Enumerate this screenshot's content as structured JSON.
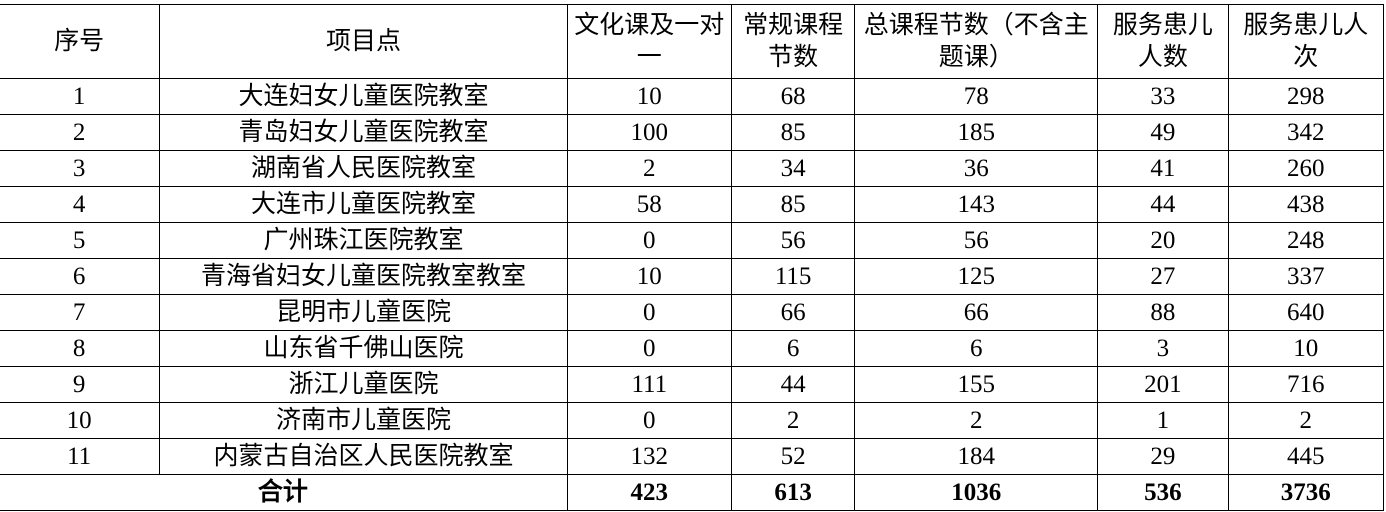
{
  "table": {
    "headers": [
      "序号",
      "项目点",
      "文化课及一对一",
      "常规课程节数",
      "总课程节数（不含主题课）",
      "服务患儿人数",
      "服务患儿人次"
    ],
    "rows": [
      [
        "1",
        "大连妇女儿童医院教室",
        "10",
        "68",
        "78",
        "33",
        "298"
      ],
      [
        "2",
        "青岛妇女儿童医院教室",
        "100",
        "85",
        "185",
        "49",
        "342"
      ],
      [
        "3",
        "湖南省人民医院教室",
        "2",
        "34",
        "36",
        "41",
        "260"
      ],
      [
        "4",
        "大连市儿童医院教室",
        "58",
        "85",
        "143",
        "44",
        "438"
      ],
      [
        "5",
        "广州珠江医院教室",
        "0",
        "56",
        "56",
        "20",
        "248"
      ],
      [
        "6",
        "青海省妇女儿童医院教室教室",
        "10",
        "115",
        "125",
        "27",
        "337"
      ],
      [
        "7",
        "昆明市儿童医院",
        "0",
        "66",
        "66",
        "88",
        "640"
      ],
      [
        "8",
        "山东省千佛山医院",
        "0",
        "6",
        "6",
        "3",
        "10"
      ],
      [
        "9",
        "浙江儿童医院",
        "111",
        "44",
        "155",
        "201",
        "716"
      ],
      [
        "10",
        "济南市儿童医院",
        "0",
        "2",
        "2",
        "1",
        "2"
      ],
      [
        "11",
        "内蒙古自治区人民医院教室",
        "132",
        "52",
        "184",
        "29",
        "445"
      ]
    ],
    "total": {
      "label": "合计",
      "values": [
        "423",
        "613",
        "1036",
        "536",
        "3736"
      ]
    }
  }
}
